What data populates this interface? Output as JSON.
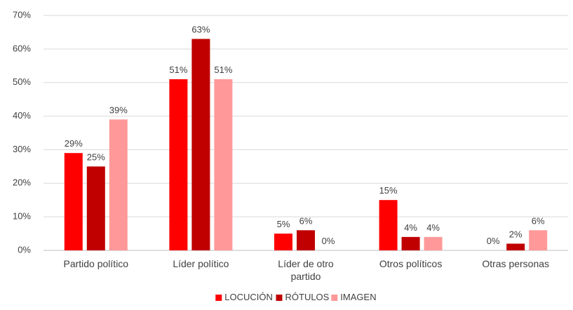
{
  "chart_data": {
    "type": "bar",
    "title": "",
    "xlabel": "",
    "ylabel": "",
    "ylim": [
      0,
      70
    ],
    "yticks": [
      0,
      10,
      20,
      30,
      40,
      50,
      60,
      70
    ],
    "ytick_format": "percent",
    "grid": true,
    "legend_position": "bottom",
    "categories": [
      "Partido político",
      "Líder político",
      "Líder de otro partido",
      "Otros políticos",
      "Otras personas"
    ],
    "series": [
      {
        "name": "LOCUCIÓN",
        "color": "#ff0000",
        "values": [
          29,
          51,
          5,
          15,
          0
        ]
      },
      {
        "name": "RÓTULOS",
        "color": "#c00000",
        "values": [
          25,
          63,
          6,
          4,
          2
        ]
      },
      {
        "name": "IMAGEN",
        "color": "#ff9999",
        "values": [
          39,
          51,
          0,
          4,
          6
        ]
      }
    ],
    "data_labels": true
  }
}
